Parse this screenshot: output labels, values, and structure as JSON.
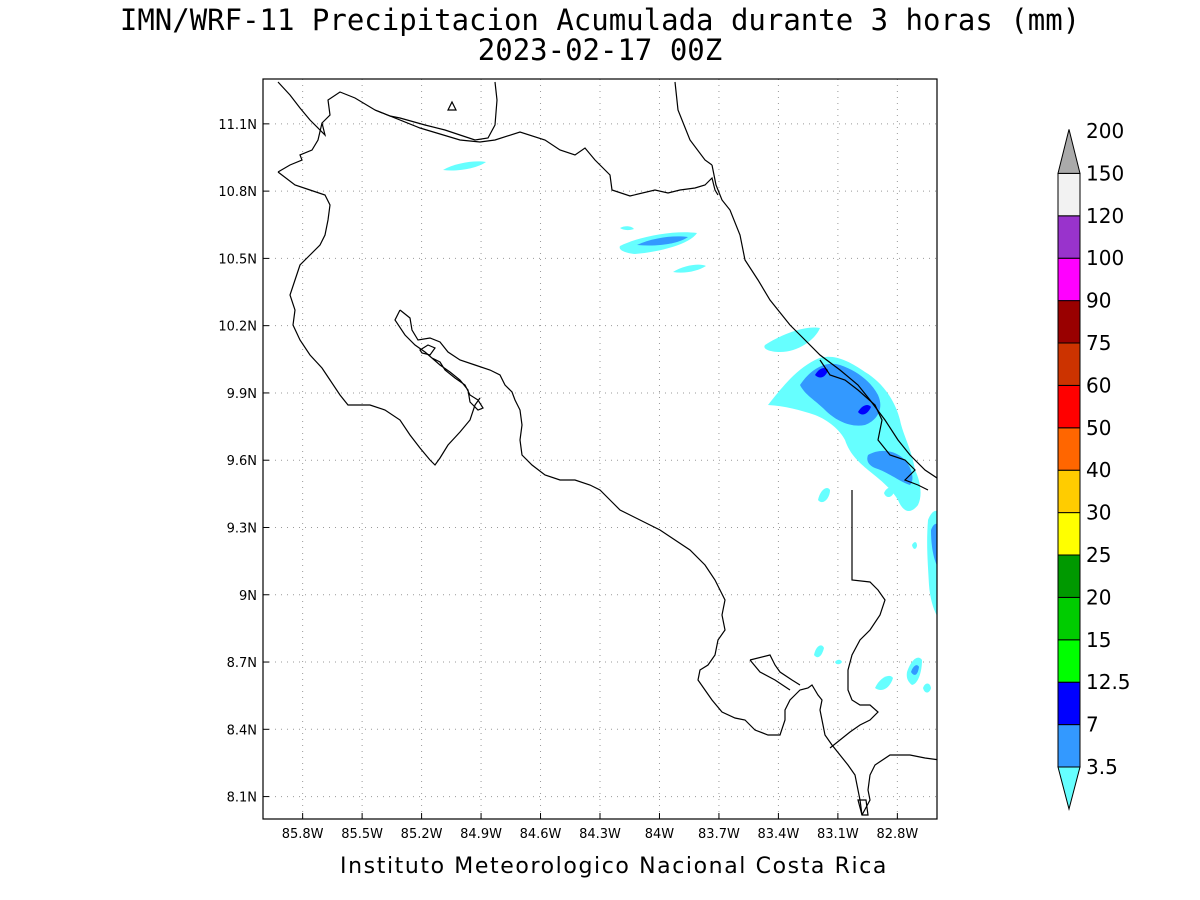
{
  "title": {
    "line1": "IMN/WRF-11 Precipitacion Acumulada durante 3 horas (mm)",
    "line2": "2023-02-17 00Z"
  },
  "credit": "Instituto Meteorologico Nacional Costa Rica",
  "map": {
    "lon_range": [
      -86.0,
      -82.6
    ],
    "lat_range": [
      8.0,
      11.3
    ],
    "lon_ticks": [
      {
        "v": -85.8,
        "label": "85.8W"
      },
      {
        "v": -85.5,
        "label": "85.5W"
      },
      {
        "v": -85.2,
        "label": "85.2W"
      },
      {
        "v": -84.9,
        "label": "84.9W"
      },
      {
        "v": -84.6,
        "label": "84.6W"
      },
      {
        "v": -84.3,
        "label": "84.3W"
      },
      {
        "v": -84.0,
        "label": "84W"
      },
      {
        "v": -83.7,
        "label": "83.7W"
      },
      {
        "v": -83.4,
        "label": "83.4W"
      },
      {
        "v": -83.1,
        "label": "83.1W"
      },
      {
        "v": -82.8,
        "label": "82.8W"
      }
    ],
    "lat_ticks": [
      {
        "v": 11.1,
        "label": "11.1N"
      },
      {
        "v": 10.8,
        "label": "10.8N"
      },
      {
        "v": 10.5,
        "label": "10.5N"
      },
      {
        "v": 10.2,
        "label": "10.2N"
      },
      {
        "v": 9.9,
        "label": "9.9N"
      },
      {
        "v": 9.6,
        "label": "9.6N"
      },
      {
        "v": 9.3,
        "label": "9.3N"
      },
      {
        "v": 9.0,
        "label": "9N"
      },
      {
        "v": 8.7,
        "label": "8.7N"
      },
      {
        "v": 8.4,
        "label": "8.4N"
      },
      {
        "v": 8.1,
        "label": "8.1N"
      }
    ],
    "grid": "dotted"
  },
  "colorbar": {
    "levels": [
      {
        "label": "3.5",
        "color": "#66ffff"
      },
      {
        "label": "7",
        "color": "#3399ff"
      },
      {
        "label": "12.5",
        "color": "#0000ff"
      },
      {
        "label": "15",
        "color": "#00ff00"
      },
      {
        "label": "20",
        "color": "#00cc00"
      },
      {
        "label": "25",
        "color": "#009900"
      },
      {
        "label": "30",
        "color": "#ffff00"
      },
      {
        "label": "40",
        "color": "#ffcc00"
      },
      {
        "label": "50",
        "color": "#ff6600"
      },
      {
        "label": "60",
        "color": "#ff0000"
      },
      {
        "label": "75",
        "color": "#cc3300"
      },
      {
        "label": "90",
        "color": "#990000"
      },
      {
        "label": "100",
        "color": "#ff00ff"
      },
      {
        "label": "120",
        "color": "#9933cc"
      },
      {
        "label": "150",
        "color": "#f2f2f2"
      },
      {
        "label": "200",
        "color": "#aaaaaa"
      }
    ]
  },
  "precip_colors": {
    "light": "#66ffff",
    "moderate": "#3399ff",
    "heavy": "#0000ff"
  }
}
